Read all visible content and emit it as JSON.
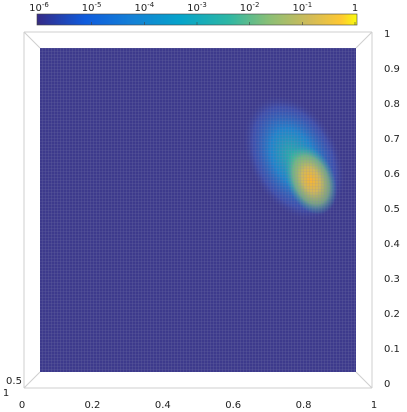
{
  "chart_data": {
    "type": "heatmap",
    "view": "3d-surface-top",
    "colormap": "parula",
    "colorscale": "log",
    "colorbar": {
      "placement": "top",
      "ticks": [
        {
          "value": 1e-06,
          "base": "10",
          "exp": "-6"
        },
        {
          "value": 1e-05,
          "base": "10",
          "exp": "-5"
        },
        {
          "value": 0.0001,
          "base": "10",
          "exp": "-4"
        },
        {
          "value": 0.001,
          "base": "10",
          "exp": "-3"
        },
        {
          "value": 0.01,
          "base": "10",
          "exp": "-2"
        },
        {
          "value": 0.1,
          "base": "10",
          "exp": "-1"
        },
        {
          "value": 1,
          "base": "1",
          "exp": ""
        }
      ],
      "range": [
        1e-06,
        1
      ]
    },
    "x_axis": {
      "ticks": [
        "0",
        "0.2",
        "0.4",
        "0.6",
        "0.8",
        "1"
      ],
      "range": [
        0,
        1
      ]
    },
    "y_axis": {
      "ticks": [
        "0",
        "0.1",
        "0.2",
        "0.3",
        "0.4",
        "0.5",
        "0.6",
        "0.7",
        "0.8",
        "0.9",
        "1"
      ],
      "range": [
        0,
        1
      ]
    },
    "z_axis": {
      "ticks": [
        "0.5",
        "1"
      ]
    },
    "background_value": 1e-06,
    "blob": {
      "peak_location": [
        0.82,
        0.53
      ],
      "peak_value": 0.6,
      "extent_x": [
        0.66,
        0.9
      ],
      "extent_y": [
        0.48,
        0.78
      ]
    },
    "grid": true
  },
  "colors": {
    "background": "#3d3a8c",
    "mesh": "#8c8cb0",
    "box": "#cfcfcf",
    "axis_text": "#222222"
  }
}
